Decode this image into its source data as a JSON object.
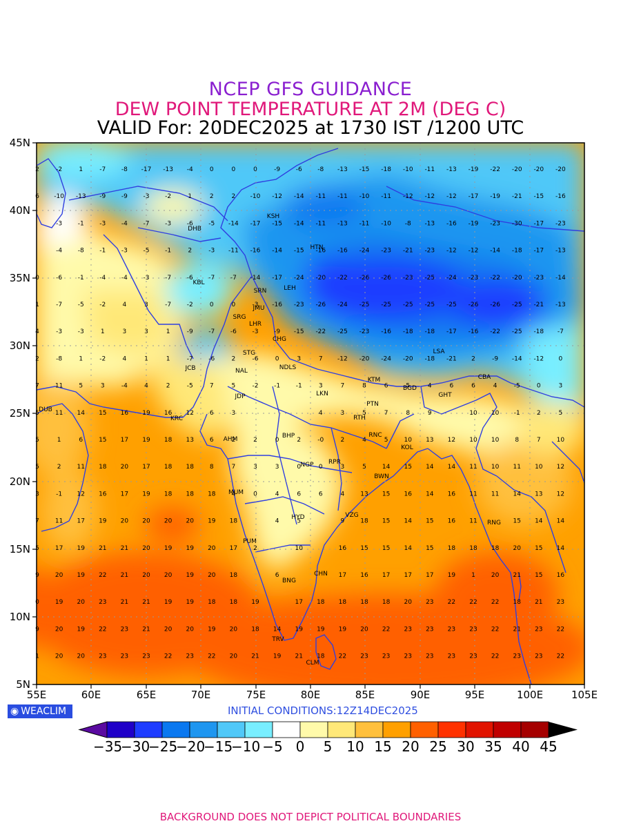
{
  "header": {
    "line1": "NCEP GFS GUIDANCE",
    "line2": "DEW POINT TEMPERATURE AT 2M (DEG C)",
    "line3": "VALID For: 20DEC2025 at 1730 IST /1200 UTC"
  },
  "axes": {
    "lat_labels": [
      "45N",
      "40N",
      "35N",
      "30N",
      "25N",
      "20N",
      "15N",
      "10N",
      "5N"
    ],
    "lon_labels": [
      "55E",
      "60E",
      "65E",
      "70E",
      "75E",
      "80E",
      "85E",
      "90E",
      "95E",
      "100E",
      "105E"
    ]
  },
  "logo": {
    "text": "WEACLIM"
  },
  "initial_conditions": "INITIAL CONDITIONS:12Z14DEC2025",
  "colorbar": {
    "labels": [
      "-35",
      "-30",
      "-25",
      "-20",
      "-15",
      "-10",
      "-5",
      "0",
      "5",
      "10",
      "15",
      "20",
      "25",
      "30",
      "35",
      "40",
      "45"
    ],
    "colors": [
      "#1f00c8",
      "#1e3cff",
      "#0a78f0",
      "#1e96f0",
      "#50c8f8",
      "#78eeff",
      "#ffffff",
      "#fffaaa",
      "#ffe878",
      "#ffc03c",
      "#ffa000",
      "#ff6000",
      "#ff3200",
      "#e11400",
      "#c00000",
      "#a50000"
    ]
  },
  "cities": [
    {
      "code": "KSH"
    },
    {
      "code": "DHB"
    },
    {
      "code": "HTN"
    },
    {
      "code": "KBL"
    },
    {
      "code": "LEH"
    },
    {
      "code": "SRN"
    },
    {
      "code": "JMU"
    },
    {
      "code": "SRG"
    },
    {
      "code": "LHR"
    },
    {
      "code": "CHG"
    },
    {
      "code": "STG"
    },
    {
      "code": "LSA"
    },
    {
      "code": "JCB"
    },
    {
      "code": "NAL"
    },
    {
      "code": "NDLS"
    },
    {
      "code": "KTM"
    },
    {
      "code": "BGD"
    },
    {
      "code": "CBA"
    },
    {
      "code": "GHT"
    },
    {
      "code": "JDP"
    },
    {
      "code": "LKN"
    },
    {
      "code": "PTN"
    },
    {
      "code": "DUB"
    },
    {
      "code": "KRC"
    },
    {
      "code": "RTH"
    },
    {
      "code": "AHM"
    },
    {
      "code": "BHP"
    },
    {
      "code": "RNC"
    },
    {
      "code": "KOL"
    },
    {
      "code": "NGP"
    },
    {
      "code": "RPR"
    },
    {
      "code": "BWN"
    },
    {
      "code": "MUM"
    },
    {
      "code": "HYD"
    },
    {
      "code": "VZG"
    },
    {
      "code": "RNG"
    },
    {
      "code": "PUM"
    },
    {
      "code": "CHN"
    },
    {
      "code": "BNG"
    },
    {
      "code": "TRV"
    },
    {
      "code": "CLM"
    }
  ],
  "station_values": [
    [
      "2",
      "-2",
      "1",
      "-7",
      "-8",
      "-17",
      "-13",
      "-4",
      "0",
      "0",
      "0",
      "-9",
      "-6",
      "-8",
      "-13",
      "-15",
      "-18",
      "-10",
      "-11",
      "-13",
      "-19",
      "-22",
      "-20",
      "-20",
      "-20"
    ],
    [
      "6",
      "-10",
      "-13",
      "-9",
      "-9",
      "-3",
      "-2",
      "1",
      "2",
      "2",
      "-10",
      "-12",
      "-14",
      "-11",
      "-11",
      "-10",
      "-11",
      "-12",
      "-12",
      "-12",
      "-17",
      "-19",
      "-21",
      "-15",
      "-16"
    ],
    [
      "",
      "-3",
      "-1",
      "-3",
      "-4",
      "-7",
      "-3",
      "-6",
      "-5",
      "-14",
      "-17",
      "-15",
      "-14",
      "-11",
      "-13",
      "-11",
      "-10",
      "-8",
      "-13",
      "-16",
      "-19",
      "-23",
      "-30",
      "-17",
      "-23"
    ],
    [
      "",
      "-4",
      "-8",
      "-1",
      "-3",
      "-5",
      "-1",
      "2",
      "-3",
      "-11",
      "-16",
      "-14",
      "-15",
      "-16",
      "-16",
      "-24",
      "-23",
      "-21",
      "-23",
      "-12",
      "-12",
      "-14",
      "-18",
      "-17",
      "-13"
    ],
    [
      "0",
      "-6",
      "-1",
      "-4",
      "-4",
      "-3",
      "-7",
      "-6",
      "-7",
      "-7",
      "-14",
      "-17",
      "-24",
      "-20",
      "-22",
      "-26",
      "-26",
      "-23",
      "-25",
      "-24",
      "-23",
      "-22",
      "-20",
      "-23",
      "-14"
    ],
    [
      "1",
      "-7",
      "-5",
      "-2",
      "4",
      "3",
      "-7",
      "-2",
      "0",
      "0",
      "-3",
      "-16",
      "-23",
      "-26",
      "-24",
      "-25",
      "-25",
      "-25",
      "-25",
      "-25",
      "-26",
      "-26",
      "-25",
      "-21",
      "-13"
    ],
    [
      "4",
      "-3",
      "-3",
      "1",
      "3",
      "3",
      "1",
      "-9",
      "-7",
      "-6",
      "-3",
      "-9",
      "-15",
      "-22",
      "-25",
      "-23",
      "-16",
      "-18",
      "-18",
      "-17",
      "-16",
      "-22",
      "-25",
      "-18",
      "-7"
    ],
    [
      "2",
      "-8",
      "1",
      "-2",
      "4",
      "1",
      "1",
      "-7",
      "-6",
      "2",
      "-6",
      "0",
      "3",
      "7",
      "-12",
      "-20",
      "-24",
      "-20",
      "-18",
      "-21",
      "2",
      "-9",
      "-14",
      "-12",
      "0"
    ],
    [
      "7",
      "11",
      "5",
      "3",
      "-4",
      "4",
      "2",
      "-5",
      "7",
      "5",
      "-2",
      "-1",
      "-1",
      "3",
      "7",
      "8",
      "6",
      "5",
      "4",
      "6",
      "6",
      "4",
      "-5",
      "0",
      "3"
    ],
    [
      "5",
      "11",
      "14",
      "15",
      "16",
      "19",
      "16",
      "12",
      "6",
      "3",
      "",
      "",
      "",
      "4",
      "3",
      "5",
      "7",
      "8",
      "9",
      "",
      "10",
      "10",
      "-1",
      "2",
      "5"
    ],
    [
      "5",
      "1",
      "6",
      "15",
      "17",
      "19",
      "18",
      "13",
      "6",
      "2",
      "2",
      "0",
      "2",
      "-0",
      "2",
      "4",
      "5",
      "10",
      "13",
      "12",
      "10",
      "10",
      "8",
      "7",
      "10"
    ],
    [
      "5",
      "2",
      "11",
      "18",
      "20",
      "17",
      "18",
      "18",
      "8",
      "7",
      "3",
      "3",
      "0",
      "0",
      "3",
      "5",
      "14",
      "15",
      "14",
      "14",
      "11",
      "10",
      "11",
      "10",
      "12"
    ],
    [
      "3",
      "-1",
      "12",
      "16",
      "17",
      "19",
      "18",
      "18",
      "18",
      "4",
      "0",
      "4",
      "6",
      "6",
      "4",
      "13",
      "15",
      "16",
      "14",
      "16",
      "11",
      "11",
      "14",
      "13",
      "12"
    ],
    [
      "7",
      "11",
      "17",
      "19",
      "20",
      "20",
      "20",
      "20",
      "19",
      "18",
      "",
      "4",
      "5",
      "",
      "9",
      "18",
      "15",
      "14",
      "15",
      "16",
      "11",
      "",
      "15",
      "14",
      "14"
    ],
    [
      "5",
      "17",
      "19",
      "21",
      "21",
      "20",
      "19",
      "19",
      "20",
      "17",
      "2",
      "",
      "10",
      "",
      "16",
      "15",
      "15",
      "14",
      "15",
      "18",
      "18",
      "18",
      "20",
      "15",
      "14"
    ],
    [
      "9",
      "20",
      "19",
      "22",
      "21",
      "20",
      "20",
      "19",
      "20",
      "18",
      "",
      "6",
      "",
      "",
      "17",
      "16",
      "17",
      "17",
      "17",
      "19",
      "1",
      "20",
      "21",
      "15",
      "16"
    ],
    [
      "0",
      "19",
      "20",
      "23",
      "21",
      "21",
      "19",
      "19",
      "18",
      "18",
      "19",
      "",
      "17",
      "18",
      "18",
      "18",
      "18",
      "20",
      "23",
      "22",
      "22",
      "22",
      "18",
      "21",
      "23"
    ],
    [
      "9",
      "20",
      "19",
      "22",
      "23",
      "21",
      "20",
      "20",
      "19",
      "20",
      "18",
      "14",
      "19",
      "19",
      "19",
      "20",
      "22",
      "23",
      "23",
      "23",
      "23",
      "22",
      "21",
      "23",
      "22"
    ],
    [
      "1",
      "20",
      "20",
      "23",
      "23",
      "23",
      "22",
      "23",
      "22",
      "20",
      "21",
      "19",
      "21",
      "18",
      "22",
      "23",
      "23",
      "23",
      "23",
      "23",
      "23",
      "22",
      "23",
      "23",
      "22"
    ]
  ]
}
